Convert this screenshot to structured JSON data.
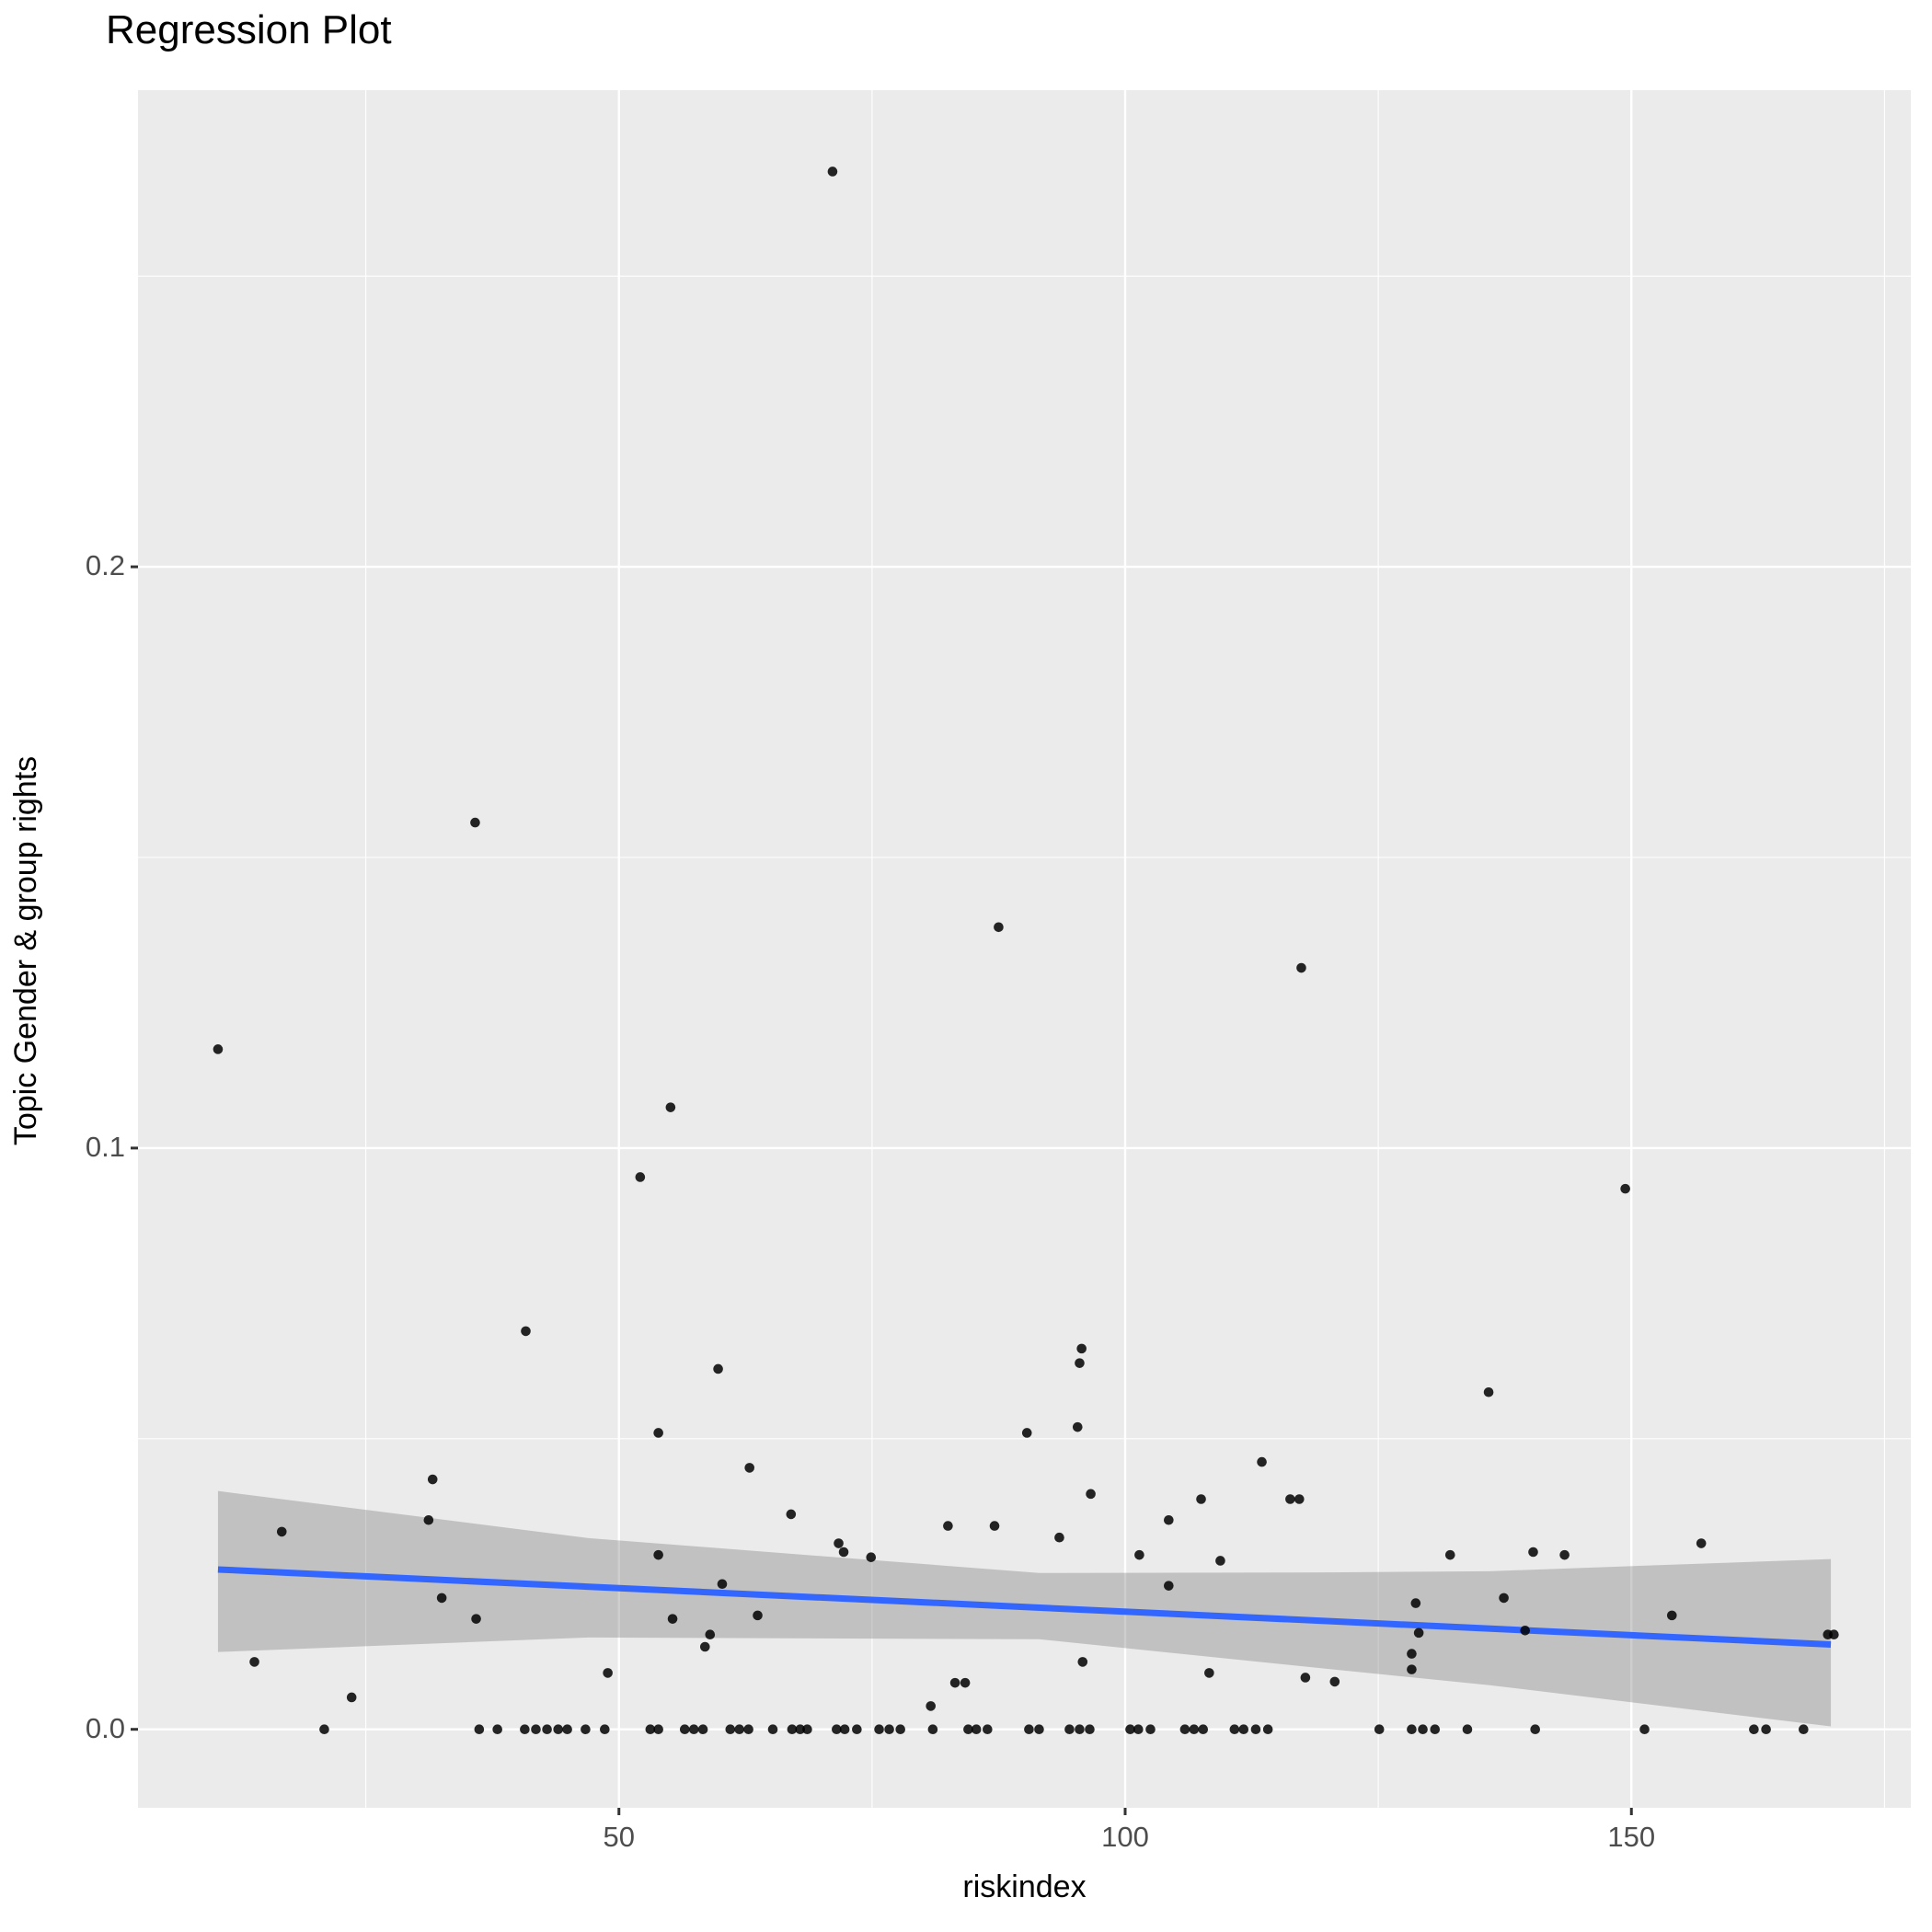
{
  "title": "Regression Plot",
  "chart_data": {
    "type": "scatter",
    "title": "Regression Plot",
    "xlabel": "riskindex",
    "ylabel": "Topic Gender & group rights",
    "legend": "none",
    "grid": true,
    "xlim": [
      2.5,
      177.6
    ],
    "ylim": [
      -0.0135,
      0.282
    ],
    "x_ticks": [
      50,
      100,
      150
    ],
    "x_tick_labels": [
      "50",
      "100",
      "150"
    ],
    "x_minor_ticks": [
      25,
      75,
      125,
      175
    ],
    "y_ticks": [
      0.0,
      0.1,
      0.2
    ],
    "y_tick_labels": [
      "0.0",
      "0.1",
      "0.2"
    ],
    "y_minor_ticks": [
      0.05,
      0.15,
      0.25
    ],
    "points": [
      [
        71.1,
        0.268
      ],
      [
        35.8,
        0.156
      ],
      [
        87.5,
        0.138
      ],
      [
        117.4,
        0.131
      ],
      [
        10.4,
        0.117
      ],
      [
        55.1,
        0.107
      ],
      [
        52.1,
        0.095
      ],
      [
        149.4,
        0.093
      ],
      [
        40.8,
        0.0685
      ],
      [
        95.7,
        0.0655
      ],
      [
        95.5,
        0.063
      ],
      [
        59.8,
        0.062
      ],
      [
        135.9,
        0.058
      ],
      [
        95.3,
        0.052
      ],
      [
        53.9,
        0.051
      ],
      [
        90.3,
        0.051
      ],
      [
        113.5,
        0.046
      ],
      [
        62.9,
        0.045
      ],
      [
        31.6,
        0.043
      ],
      [
        96.6,
        0.0405
      ],
      [
        107.5,
        0.0396
      ],
      [
        116.3,
        0.0396
      ],
      [
        117.2,
        0.0396
      ],
      [
        67.0,
        0.037
      ],
      [
        31.2,
        0.036
      ],
      [
        104.3,
        0.036
      ],
      [
        82.5,
        0.035
      ],
      [
        87.1,
        0.035
      ],
      [
        16.7,
        0.034
      ],
      [
        93.5,
        0.033
      ],
      [
        71.7,
        0.032
      ],
      [
        156.9,
        0.032
      ],
      [
        72.2,
        0.0305
      ],
      [
        140.3,
        0.0305
      ],
      [
        53.9,
        0.03
      ],
      [
        101.4,
        0.03
      ],
      [
        132.1,
        0.03
      ],
      [
        143.4,
        0.03
      ],
      [
        74.9,
        0.0296
      ],
      [
        109.4,
        0.029
      ],
      [
        60.2,
        0.025
      ],
      [
        104.3,
        0.0247
      ],
      [
        32.5,
        0.0226
      ],
      [
        137.4,
        0.0226
      ],
      [
        128.7,
        0.0217
      ],
      [
        63.7,
        0.0196
      ],
      [
        154.0,
        0.0196
      ],
      [
        35.9,
        0.019
      ],
      [
        55.3,
        0.019
      ],
      [
        139.5,
        0.017
      ],
      [
        129.0,
        0.0166
      ],
      [
        59.0,
        0.0163
      ],
      [
        169.4,
        0.0163
      ],
      [
        170.0,
        0.0163
      ],
      [
        58.5,
        0.0142
      ],
      [
        128.3,
        0.013
      ],
      [
        14.0,
        0.0116
      ],
      [
        95.8,
        0.0116
      ],
      [
        128.3,
        0.0103
      ],
      [
        48.9,
        0.0097
      ],
      [
        108.3,
        0.0097
      ],
      [
        117.8,
        0.0089
      ],
      [
        120.7,
        0.0082
      ],
      [
        83.2,
        0.008
      ],
      [
        84.2,
        0.008
      ],
      [
        23.6,
        0.0055
      ],
      [
        80.8,
        0.004
      ],
      [
        20.9,
        0
      ],
      [
        36.2,
        0
      ],
      [
        38.0,
        0
      ],
      [
        40.7,
        0
      ],
      [
        41.8,
        0
      ],
      [
        42.9,
        0
      ],
      [
        44.0,
        0
      ],
      [
        44.9,
        0
      ],
      [
        46.7,
        0
      ],
      [
        48.6,
        0
      ],
      [
        53.1,
        0
      ],
      [
        53.9,
        0
      ],
      [
        56.5,
        0
      ],
      [
        57.4,
        0
      ],
      [
        58.3,
        0
      ],
      [
        61.0,
        0
      ],
      [
        61.9,
        0
      ],
      [
        62.8,
        0
      ],
      [
        65.2,
        0
      ],
      [
        67.1,
        0
      ],
      [
        67.9,
        0
      ],
      [
        68.6,
        0
      ],
      [
        71.5,
        0
      ],
      [
        72.3,
        0
      ],
      [
        73.5,
        0
      ],
      [
        75.7,
        0
      ],
      [
        76.7,
        0
      ],
      [
        77.8,
        0
      ],
      [
        81.0,
        0
      ],
      [
        84.5,
        0
      ],
      [
        85.3,
        0
      ],
      [
        86.4,
        0
      ],
      [
        90.5,
        0
      ],
      [
        91.5,
        0
      ],
      [
        94.5,
        0
      ],
      [
        95.5,
        0
      ],
      [
        96.5,
        0
      ],
      [
        100.5,
        0
      ],
      [
        101.3,
        0
      ],
      [
        102.5,
        0
      ],
      [
        105.9,
        0
      ],
      [
        106.8,
        0
      ],
      [
        107.7,
        0
      ],
      [
        110.8,
        0
      ],
      [
        111.7,
        0
      ],
      [
        112.9,
        0
      ],
      [
        114.1,
        0
      ],
      [
        125.1,
        0
      ],
      [
        128.3,
        0
      ],
      [
        129.4,
        0
      ],
      [
        130.6,
        0
      ],
      [
        133.8,
        0
      ],
      [
        140.5,
        0
      ],
      [
        151.3,
        0
      ],
      [
        162.1,
        0
      ],
      [
        163.3,
        0
      ],
      [
        167.0,
        0
      ]
    ],
    "regression_line": {
      "x": [
        10.4,
        169.7
      ],
      "y": [
        0.0275,
        0.0146
      ]
    },
    "confidence_band": {
      "x": [
        10.4,
        47.0,
        91.5,
        120.0,
        136.0,
        169.7
      ],
      "upper": [
        0.041,
        0.0329,
        0.0269,
        0.027,
        0.0272,
        0.0293
      ],
      "lower": [
        0.0133,
        0.0158,
        0.0155,
        0.0104,
        0.0076,
        0.0005
      ]
    },
    "colors": {
      "panel_background": "#EBEBEB",
      "gridline": "#FFFFFF",
      "point": "#000000",
      "regression_line": "#3366FF",
      "confidence_band": "rgba(127,127,127,0.38)",
      "tick_text": "#4D4D4D",
      "tick_mark": "#333333"
    }
  }
}
